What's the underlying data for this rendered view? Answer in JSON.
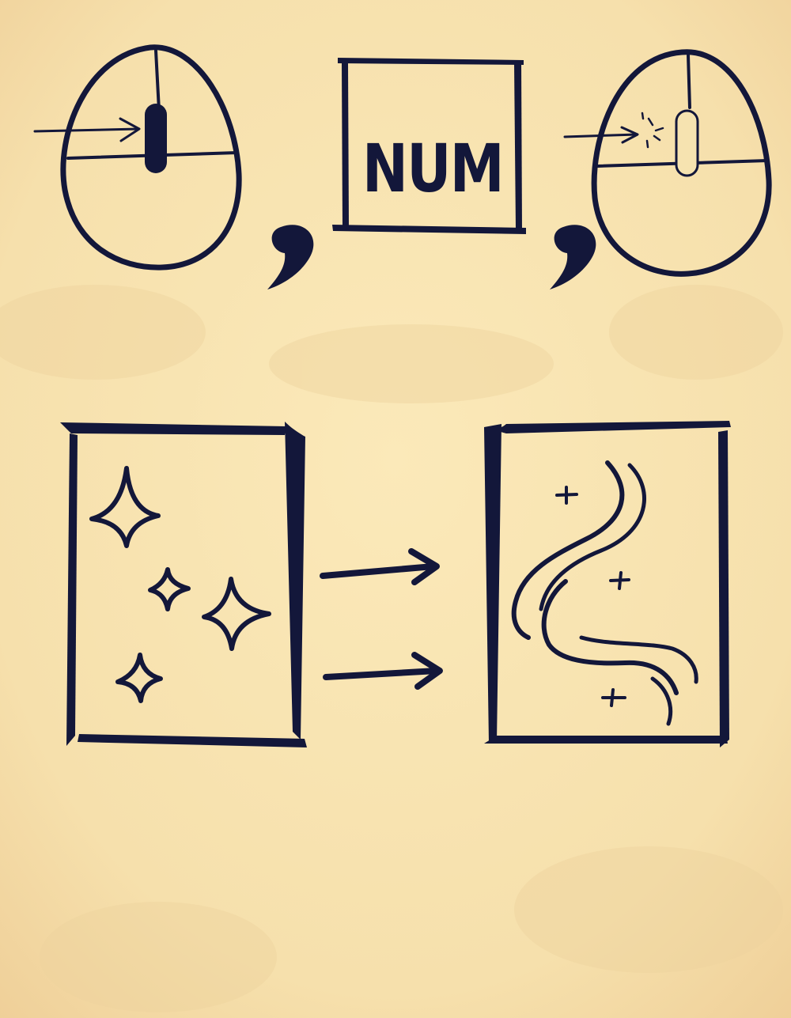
{
  "key_label": "NUM",
  "colors": {
    "ink": "#13173a",
    "paper": "#f8e6b4",
    "paper_dark": "#f0d49a"
  },
  "icons": [
    "mouse-scroll-wheel-icon",
    "num-key-icon",
    "mouse-middle-click-icon",
    "sparkles-card-icon",
    "arrow-right-icon",
    "wind-card-icon"
  ]
}
